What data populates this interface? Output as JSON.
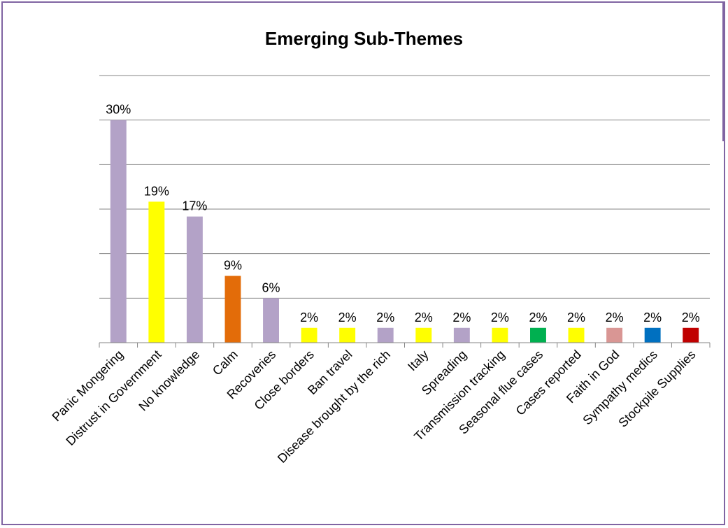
{
  "chart_data": {
    "type": "bar",
    "title": "Emerging Sub-Themes",
    "categories": [
      "Panic Mongering",
      "Distrust in Government",
      "No knowledge",
      "Calm",
      "Recoveries",
      "Close borders",
      "Ban travel",
      "Disease brought by the rich",
      "Italy",
      "Spreading",
      "Transmission tracking",
      "Seasonal flue cases",
      "Cases reported",
      "Faith in God",
      "Sympathy medics",
      "Stockpile Supplies"
    ],
    "values": [
      30,
      19,
      17,
      9,
      6,
      2,
      2,
      2,
      2,
      2,
      2,
      2,
      2,
      2,
      2,
      2
    ],
    "data_labels": [
      "30%",
      "19%",
      "17%",
      "9%",
      "6%",
      "2%",
      "2%",
      "2%",
      "2%",
      "2%",
      "2%",
      "2%",
      "2%",
      "2%",
      "2%",
      "2%"
    ],
    "colors": [
      "#b3a2c7",
      "#ffff00",
      "#b3a2c7",
      "#e36c09",
      "#b3a2c7",
      "#ffff00",
      "#ffff00",
      "#b3a2c7",
      "#ffff00",
      "#b3a2c7",
      "#ffff00",
      "#00b050",
      "#ffff00",
      "#d99694",
      "#0070c0",
      "#c00000"
    ],
    "ylim": [
      0,
      36
    ],
    "grid": true,
    "legend": "none",
    "xlabel": "",
    "ylabel": ""
  }
}
